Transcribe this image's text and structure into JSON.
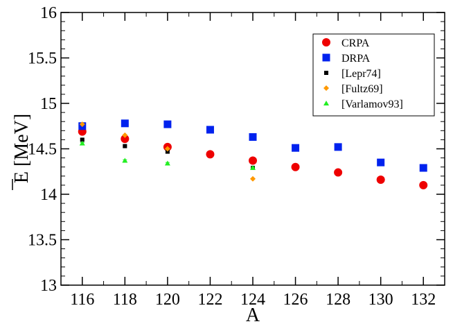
{
  "chart_data": {
    "type": "scatter",
    "xlabel": "A",
    "ylabel": "E [MeV]",
    "ylabel_overbar_on": "E",
    "xlim": [
      115,
      133
    ],
    "ylim": [
      13,
      16
    ],
    "x_ticks": [
      116,
      118,
      120,
      122,
      124,
      126,
      128,
      130,
      132
    ],
    "y_ticks": [
      13,
      13.5,
      14,
      14.5,
      15,
      15.5,
      16
    ],
    "y_tick_labels": [
      "13",
      "13.5",
      "14",
      "14.5",
      "15",
      "15.5",
      "16"
    ],
    "legend_position": "top-right",
    "series": [
      {
        "name": "CRPA",
        "marker": "circle",
        "color": "#ee0000",
        "x": [
          116,
          118,
          120,
          122,
          124,
          126,
          128,
          130,
          132
        ],
        "y": [
          14.69,
          14.61,
          14.52,
          14.44,
          14.37,
          14.3,
          14.24,
          14.16,
          14.1
        ]
      },
      {
        "name": "DRPA",
        "marker": "square",
        "color": "#0022ee",
        "x": [
          116,
          118,
          120,
          122,
          124,
          126,
          128,
          130,
          132
        ],
        "y": [
          14.75,
          14.78,
          14.77,
          14.71,
          14.63,
          14.51,
          14.52,
          14.35,
          14.29
        ]
      },
      {
        "name": "[Lepr74]",
        "marker": "small-square",
        "color": "#000000",
        "x": [
          116,
          118,
          120,
          124
        ],
        "y": [
          14.6,
          14.53,
          14.47,
          14.29
        ],
        "yerr": [
          0.01,
          0.01,
          0.02,
          0.01
        ]
      },
      {
        "name": "[Fultz69]",
        "marker": "diamond",
        "color": "#ff9900",
        "x": [
          116,
          118,
          120,
          124
        ],
        "y": [
          14.77,
          14.65,
          14.5,
          14.17
        ]
      },
      {
        "name": "[Varlamov93]",
        "marker": "triangle",
        "color": "#22ee22",
        "x": [
          116,
          118,
          120,
          124
        ],
        "y": [
          14.56,
          14.37,
          14.34,
          14.29
        ],
        "yerr": [
          0.01,
          0.01,
          0.01,
          0.01
        ]
      }
    ]
  }
}
